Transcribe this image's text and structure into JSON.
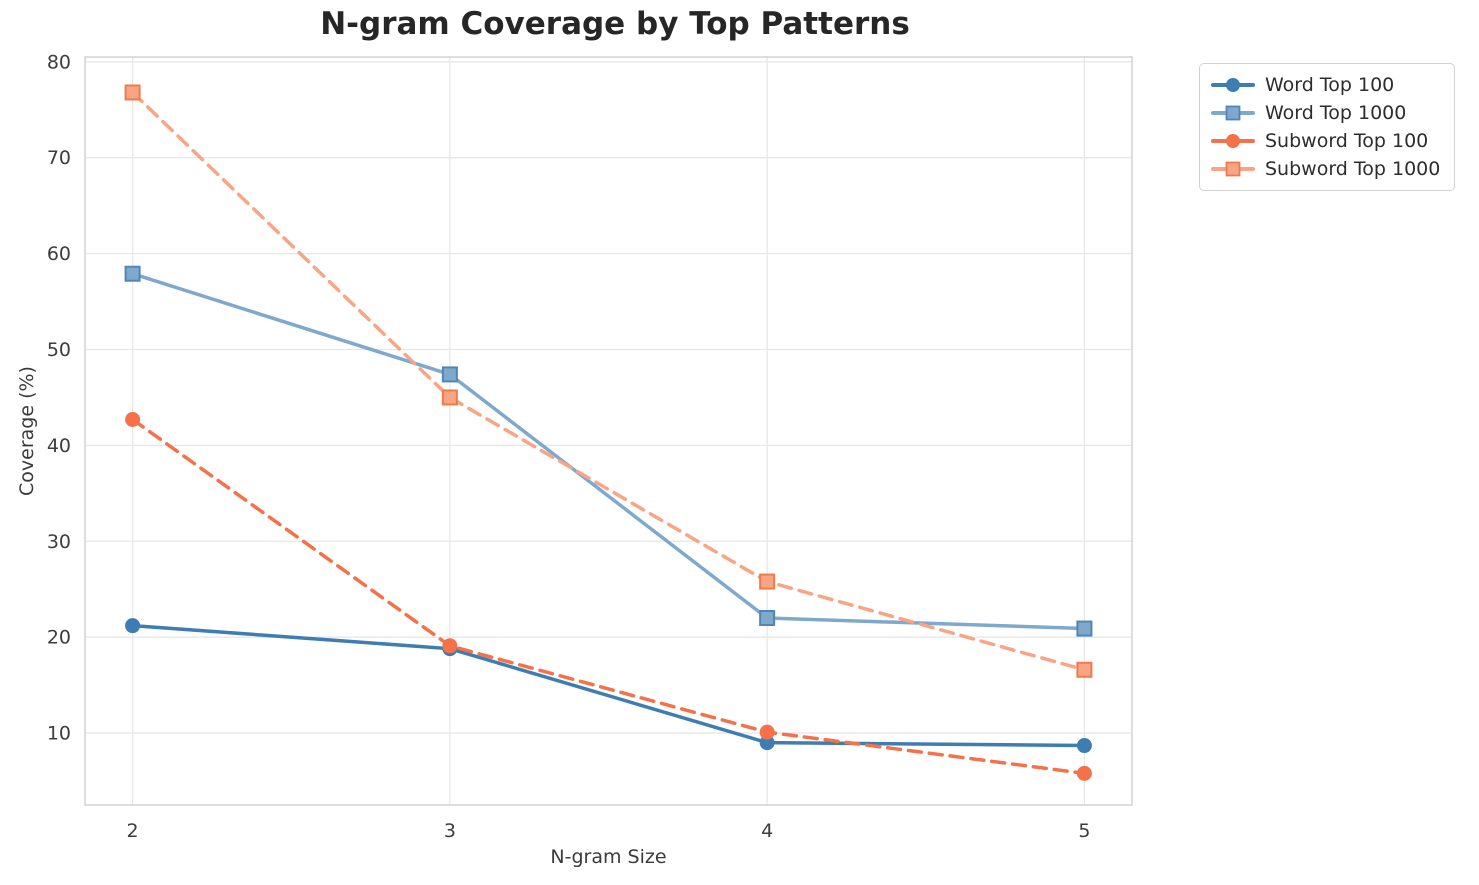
{
  "chart_data": {
    "type": "line",
    "title": "N-gram Coverage by Top Patterns",
    "xlabel": "N-gram Size",
    "ylabel": "Coverage (%)",
    "x": [
      2,
      3,
      4,
      5
    ],
    "xticks": [
      2,
      3,
      4,
      5
    ],
    "yticks": [
      10,
      20,
      30,
      40,
      50,
      60,
      70,
      80
    ],
    "xlim": [
      1.85,
      5.15
    ],
    "ylim": [
      2.5,
      80.5
    ],
    "grid": true,
    "legend_position": "upper right outside",
    "series": [
      {
        "name": "Word Top 100",
        "color": "#3d7db1",
        "marker": "circle",
        "dash": "solid",
        "values": [
          21.2,
          18.8,
          9.0,
          8.7
        ]
      },
      {
        "name": "Word Top 1000",
        "color": "#7fa8cd",
        "marker": "square",
        "marker_edge": "#4f86b4",
        "dash": "solid",
        "values": [
          57.9,
          47.4,
          22.0,
          20.9
        ]
      },
      {
        "name": "Subword Top 100",
        "color": "#f4714a",
        "marker": "circle",
        "dash": "dashed",
        "values": [
          42.7,
          19.1,
          10.1,
          5.8
        ]
      },
      {
        "name": "Subword Top 1000",
        "color": "#f8a585",
        "marker": "square",
        "marker_edge": "#ef7b4d",
        "dash": "dashed",
        "values": [
          76.8,
          45.0,
          25.8,
          16.6
        ]
      }
    ]
  },
  "style": {
    "grid_color": "#e7e7e7",
    "frame_color": "#cccccc",
    "tick_color": "#3d3d3d",
    "title_color": "#262626",
    "background": "#ffffff"
  }
}
